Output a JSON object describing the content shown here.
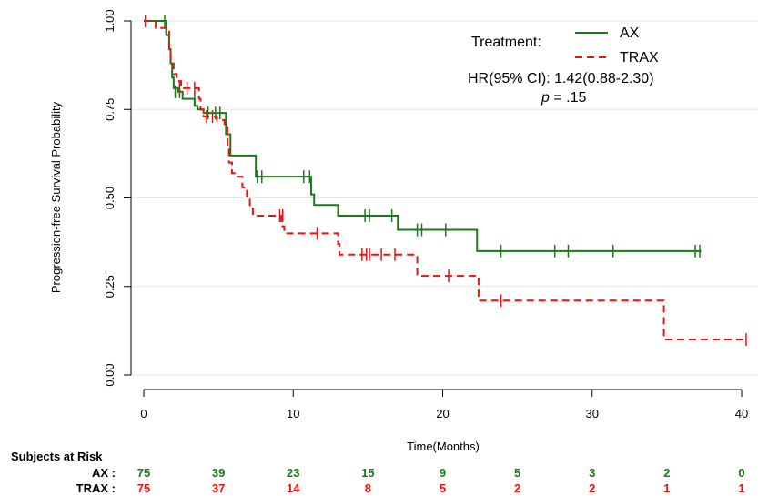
{
  "chart_data": {
    "type": "line",
    "title": "",
    "xlabel": "Time(Months)",
    "ylabel": "Progression-free Survival Probability",
    "xlim": [
      0,
      40
    ],
    "ylim": [
      0,
      1
    ],
    "x_ticks": [
      0,
      10,
      20,
      30,
      40
    ],
    "y_ticks": [
      0.0,
      0.25,
      0.5,
      0.75,
      1.0
    ],
    "y_tick_labels": [
      "0.00",
      "0.25",
      "0.50",
      "0.75",
      "1.00"
    ],
    "grid": "horizontal",
    "legend": {
      "title": "Treatment:",
      "position": "top-right",
      "entries": [
        "AX",
        "TRAX"
      ],
      "hr_text": "HR(95% CI): 1.42(0.88-2.30)",
      "p_label": "p",
      "p_value": " = .15"
    },
    "series": [
      {
        "name": "AX",
        "color": "#1a7a1a",
        "style": "solid",
        "steps": [
          [
            0,
            1.0
          ],
          [
            1.3,
            1.0
          ],
          [
            1.5,
            0.96
          ],
          [
            1.7,
            0.92
          ],
          [
            1.8,
            0.88
          ],
          [
            1.9,
            0.84
          ],
          [
            2.0,
            0.81
          ],
          [
            2.3,
            0.8
          ],
          [
            2.6,
            0.78
          ],
          [
            3.2,
            0.78
          ],
          [
            3.4,
            0.76
          ],
          [
            3.6,
            0.75
          ],
          [
            4.0,
            0.74
          ],
          [
            5.3,
            0.74
          ],
          [
            5.5,
            0.68
          ],
          [
            5.8,
            0.62
          ],
          [
            7.3,
            0.62
          ],
          [
            7.5,
            0.56
          ],
          [
            10.9,
            0.56
          ],
          [
            11.2,
            0.51
          ],
          [
            11.4,
            0.48
          ],
          [
            12.9,
            0.48
          ],
          [
            13.0,
            0.45
          ],
          [
            16.8,
            0.45
          ],
          [
            17.0,
            0.41
          ],
          [
            22.2,
            0.41
          ],
          [
            22.3,
            0.35
          ],
          [
            37.3,
            0.35
          ]
        ],
        "censors": [
          [
            1.4,
            1.0
          ],
          [
            2.1,
            0.8
          ],
          [
            2.4,
            0.8
          ],
          [
            3.4,
            0.78
          ],
          [
            4.3,
            0.74
          ],
          [
            4.8,
            0.74
          ],
          [
            5.1,
            0.74
          ],
          [
            7.6,
            0.56
          ],
          [
            7.9,
            0.56
          ],
          [
            10.7,
            0.56
          ],
          [
            11.1,
            0.56
          ],
          [
            14.8,
            0.45
          ],
          [
            15.1,
            0.45
          ],
          [
            16.6,
            0.45
          ],
          [
            18.3,
            0.41
          ],
          [
            18.6,
            0.41
          ],
          [
            20.2,
            0.41
          ],
          [
            23.9,
            0.35
          ],
          [
            27.5,
            0.35
          ],
          [
            28.4,
            0.35
          ],
          [
            31.4,
            0.35
          ],
          [
            36.9,
            0.35
          ],
          [
            37.2,
            0.35
          ]
        ]
      },
      {
        "name": "TRAX",
        "color": "#ee1111",
        "style": "dashed",
        "steps": [
          [
            0,
            1.0
          ],
          [
            0.6,
            1.0
          ],
          [
            0.8,
            0.98
          ],
          [
            1.4,
            0.98
          ],
          [
            1.5,
            0.97
          ],
          [
            1.7,
            0.92
          ],
          [
            1.8,
            0.88
          ],
          [
            2.0,
            0.85
          ],
          [
            2.2,
            0.83
          ],
          [
            2.5,
            0.81
          ],
          [
            3.6,
            0.81
          ],
          [
            3.7,
            0.78
          ],
          [
            3.8,
            0.75
          ],
          [
            4.0,
            0.73
          ],
          [
            4.9,
            0.72
          ],
          [
            5.4,
            0.7
          ],
          [
            5.6,
            0.65
          ],
          [
            5.7,
            0.6
          ],
          [
            5.9,
            0.57
          ],
          [
            6.2,
            0.56
          ],
          [
            6.6,
            0.53
          ],
          [
            6.9,
            0.5
          ],
          [
            7.1,
            0.47
          ],
          [
            7.3,
            0.45
          ],
          [
            9.0,
            0.45
          ],
          [
            9.2,
            0.42
          ],
          [
            9.4,
            0.4
          ],
          [
            12.7,
            0.4
          ],
          [
            13.0,
            0.37
          ],
          [
            13.1,
            0.34
          ],
          [
            18.2,
            0.34
          ],
          [
            18.3,
            0.28
          ],
          [
            22.3,
            0.28
          ],
          [
            22.4,
            0.21
          ],
          [
            34.7,
            0.21
          ],
          [
            34.8,
            0.1
          ],
          [
            40.3,
            0.1
          ]
        ],
        "censors": [
          [
            0.1,
            1.0
          ],
          [
            2.4,
            0.81
          ],
          [
            2.9,
            0.81
          ],
          [
            3.4,
            0.81
          ],
          [
            4.2,
            0.73
          ],
          [
            4.6,
            0.73
          ],
          [
            9.1,
            0.45
          ],
          [
            9.3,
            0.45
          ],
          [
            11.6,
            0.4
          ],
          [
            14.6,
            0.34
          ],
          [
            14.9,
            0.34
          ],
          [
            15.1,
            0.34
          ],
          [
            15.9,
            0.34
          ],
          [
            16.8,
            0.34
          ],
          [
            20.4,
            0.28
          ],
          [
            23.9,
            0.21
          ],
          [
            40.3,
            0.1
          ]
        ]
      }
    ]
  },
  "risk_table": {
    "title": "Subjects at Risk",
    "rows": [
      {
        "label": "AX :",
        "color": "#1a7a1a",
        "values": [
          "75",
          "39",
          "23",
          "15",
          "9",
          "5",
          "3",
          "2",
          "0"
        ]
      },
      {
        "label": "TRAX :",
        "color": "#ee1111",
        "values": [
          "75",
          "37",
          "14",
          "8",
          "5",
          "2",
          "2",
          "1",
          "1"
        ]
      }
    ],
    "times": [
      0,
      5,
      10,
      15,
      20,
      25,
      30,
      35,
      40
    ]
  }
}
